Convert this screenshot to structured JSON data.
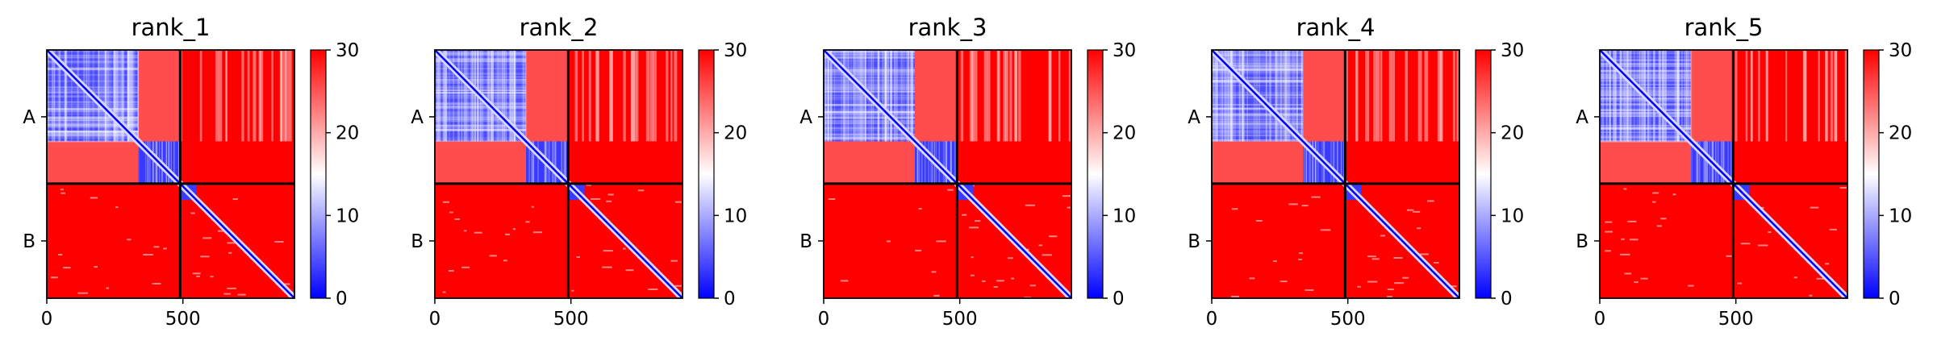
{
  "chart_data": [
    {
      "type": "heatmap",
      "title": "rank_1",
      "ytick_labels": [
        "A",
        "B"
      ],
      "xticks": [
        0,
        500
      ],
      "colorbar_ticks": [
        0,
        10,
        20,
        30
      ],
      "value_range": [
        0,
        30
      ],
      "colormap": "bwr",
      "chain_boundary": 490,
      "sequence_length": 910,
      "domain_split": 335
    },
    {
      "type": "heatmap",
      "title": "rank_2",
      "ytick_labels": [
        "A",
        "B"
      ],
      "xticks": [
        0,
        500
      ],
      "colorbar_ticks": [
        0,
        10,
        20,
        30
      ],
      "value_range": [
        0,
        30
      ],
      "colormap": "bwr",
      "chain_boundary": 490,
      "sequence_length": 910,
      "domain_split": 335
    },
    {
      "type": "heatmap",
      "title": "rank_3",
      "ytick_labels": [
        "A",
        "B"
      ],
      "xticks": [
        0,
        500
      ],
      "colorbar_ticks": [
        0,
        10,
        20,
        30
      ],
      "value_range": [
        0,
        30
      ],
      "colormap": "bwr",
      "chain_boundary": 490,
      "sequence_length": 910,
      "domain_split": 335
    },
    {
      "type": "heatmap",
      "title": "rank_4",
      "ytick_labels": [
        "A",
        "B"
      ],
      "xticks": [
        0,
        500
      ],
      "colorbar_ticks": [
        0,
        10,
        20,
        30
      ],
      "value_range": [
        0,
        30
      ],
      "colormap": "bwr",
      "chain_boundary": 490,
      "sequence_length": 910,
      "domain_split": 335
    },
    {
      "type": "heatmap",
      "title": "rank_5",
      "ytick_labels": [
        "A",
        "B"
      ],
      "xticks": [
        0,
        500
      ],
      "colorbar_ticks": [
        0,
        10,
        20,
        30
      ],
      "value_range": [
        0,
        30
      ],
      "colormap": "bwr",
      "chain_boundary": 490,
      "sequence_length": 910,
      "domain_split": 335
    }
  ],
  "colors": {
    "low": "#0000ff",
    "mid": "#ffffff",
    "high": "#ff0000",
    "chain_line": "#000000"
  }
}
